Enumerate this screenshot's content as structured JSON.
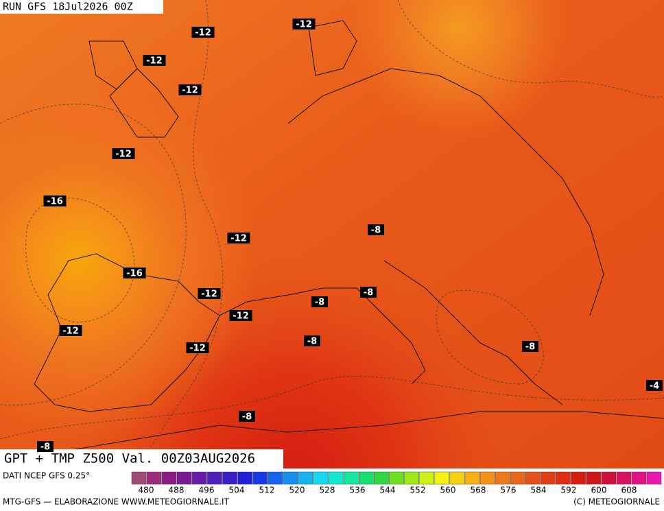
{
  "header": {
    "run": "RUN GFS 18Jul2026 00Z",
    "title": "GPT + TMP Z500 Val. 00Z03AUG2026"
  },
  "contour_labels": [
    "-12",
    "-12",
    "-12",
    "-12",
    "-12",
    "-16",
    "-12",
    "-8",
    "-16",
    "-12",
    "-8",
    "-8",
    "-12",
    "-12",
    "-8",
    "-12",
    "-8",
    "-4",
    "-8",
    "-8"
  ],
  "footer": {
    "source": "DATI NCEP GFS 0.25°",
    "credit": "MTG-GFS — ELABORAZIONE WWW.METEOGIORNALE.IT",
    "copyright": "(C) METEOGIORNALE"
  },
  "legend": {
    "ticks": [
      480,
      488,
      496,
      504,
      512,
      520,
      528,
      536,
      544,
      552,
      560,
      568,
      576,
      584,
      592,
      600,
      608
    ]
  }
}
